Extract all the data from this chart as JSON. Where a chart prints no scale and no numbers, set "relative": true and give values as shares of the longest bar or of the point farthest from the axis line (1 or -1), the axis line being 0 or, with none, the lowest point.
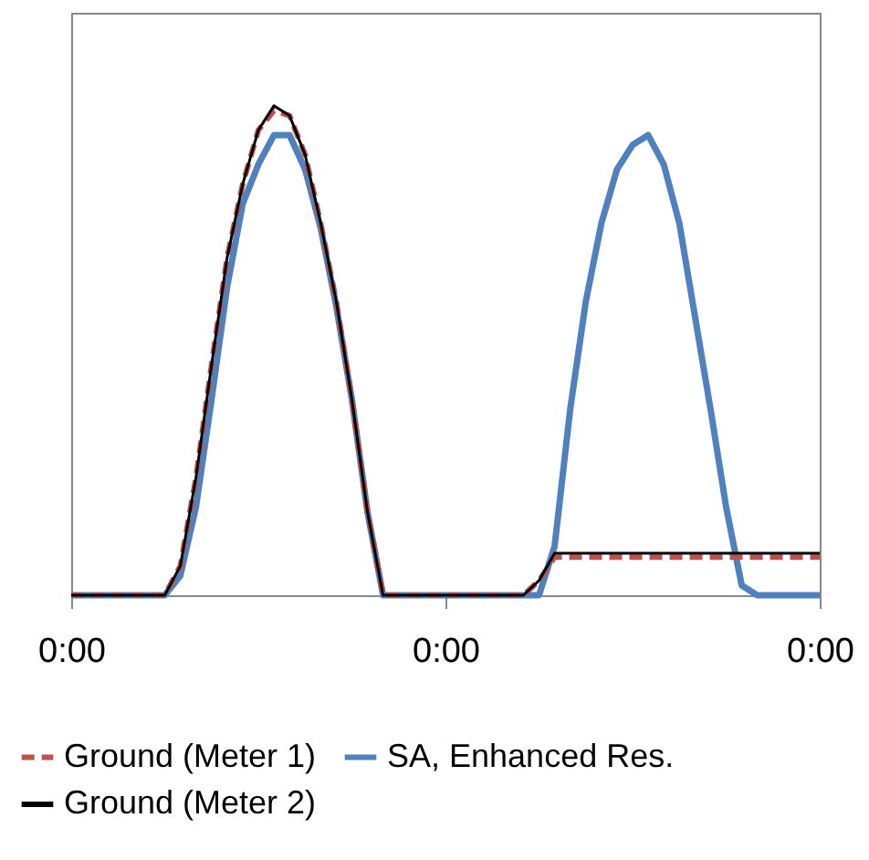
{
  "chart_data": {
    "type": "line",
    "relative": true,
    "legend": "bottom",
    "categories": [
      "0:00",
      null,
      null,
      null,
      null,
      null,
      null,
      null,
      null,
      null,
      null,
      null,
      null,
      null,
      null,
      null,
      null,
      null,
      null,
      null,
      null,
      null,
      null,
      null,
      "0:00",
      null,
      null,
      null,
      null,
      null,
      null,
      null,
      null,
      null,
      null,
      null,
      null,
      null,
      null,
      null,
      null,
      null,
      null,
      null,
      null,
      null,
      null,
      null,
      "0:00"
    ],
    "series": [
      {
        "name": "Ground (Meter 1)",
        "color": "#c0504d",
        "line_style": "dashed",
        "values": [
          0,
          0,
          0,
          0,
          0,
          0,
          0,
          0.06,
          0.24,
          0.47,
          0.69,
          0.84,
          0.95,
          0.99,
          0.98,
          0.9,
          0.76,
          0.6,
          0.4,
          0.17,
          0,
          0,
          0,
          0,
          0,
          0,
          0,
          0,
          0,
          0,
          0.03,
          0.078,
          0.078,
          0.078,
          0.078,
          0.078,
          0.078,
          0.078,
          0.078,
          0.078,
          0.078,
          0.078,
          0.078,
          0.078,
          0.078,
          0.078,
          0.078,
          0.078,
          0.078
        ]
      },
      {
        "name": "SA, Enhanced Res.",
        "color": "#4f81bd",
        "line_style": "solid",
        "values": [
          0,
          0,
          0,
          0,
          0,
          0,
          0,
          0.04,
          0.18,
          0.4,
          0.63,
          0.8,
          0.88,
          0.94,
          0.94,
          0.87,
          0.75,
          0.59,
          0.4,
          0.17,
          0,
          0,
          0,
          0,
          0,
          0,
          0,
          0,
          0,
          0,
          0,
          0.1,
          0.38,
          0.6,
          0.76,
          0.87,
          0.92,
          0.94,
          0.88,
          0.76,
          0.57,
          0.38,
          0.18,
          0.02,
          0,
          0,
          0,
          0,
          0
        ]
      },
      {
        "name": "Ground (Meter 2)",
        "color": "#000000",
        "line_style": "solid",
        "values": [
          0,
          0,
          0,
          0,
          0,
          0,
          0,
          0.06,
          0.24,
          0.47,
          0.69,
          0.84,
          0.95,
          1,
          0.98,
          0.9,
          0.76,
          0.6,
          0.4,
          0.17,
          0,
          0,
          0,
          0,
          0,
          0,
          0,
          0,
          0,
          0,
          0.03,
          0.086,
          0.086,
          0.086,
          0.086,
          0.086,
          0.086,
          0.086,
          0.086,
          0.086,
          0.086,
          0.086,
          0.086,
          0.086,
          0.086,
          0.086,
          0.086,
          0.086,
          0.086
        ]
      }
    ]
  }
}
